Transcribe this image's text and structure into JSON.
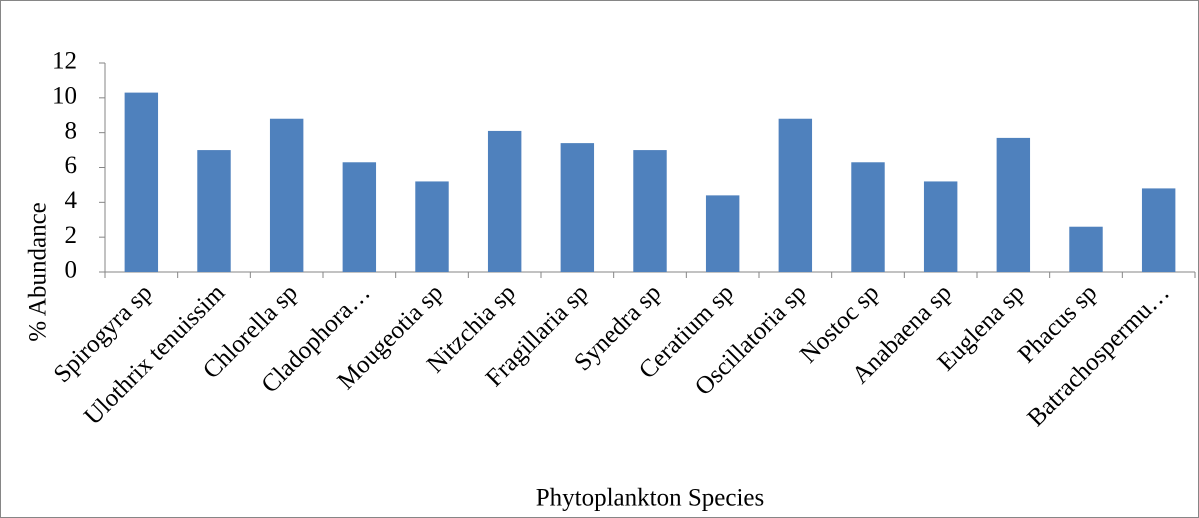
{
  "chart_data": {
    "type": "bar",
    "x_label": "Phytoplankton Species",
    "y_label": "% Abundance",
    "categories": [
      "Spirogyra sp",
      "Ulothrix tenuissim",
      "Chlorella sp",
      "Cladophora…",
      "Mougeotia sp",
      "Nitzchia sp",
      "Fragillaria sp",
      "Synedra sp",
      "Ceratium sp",
      "Oscillatoria sp",
      "Nostoc sp",
      "Anabaena sp",
      "Euglena sp",
      "Phacus sp",
      "Batrachospermu…"
    ],
    "values": [
      10.3,
      7.0,
      8.8,
      6.3,
      5.2,
      8.1,
      7.4,
      7.0,
      4.4,
      8.8,
      6.3,
      5.2,
      7.7,
      2.6,
      4.8
    ],
    "color": "#4f81bd",
    "ylim": [
      0,
      12
    ],
    "yticks": [
      0,
      2,
      4,
      6,
      8,
      10,
      12
    ],
    "grid": false
  }
}
